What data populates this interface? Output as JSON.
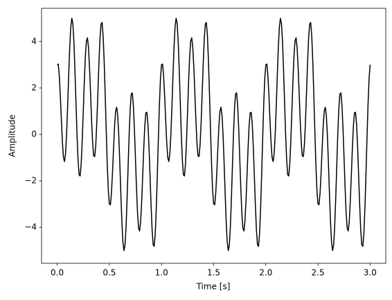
{
  "chart_data": {
    "type": "line",
    "xlabel": "Time [s]",
    "ylabel": "Amplitude",
    "color": "#000000",
    "x": [
      0,
      0.01,
      0.02,
      0.03,
      0.04,
      0.05,
      0.06,
      0.07,
      0.08,
      0.09,
      0.1,
      0.11,
      0.12,
      0.13,
      0.14,
      0.15,
      0.16,
      0.17,
      0.18,
      0.19,
      0.2,
      0.21,
      0.22,
      0.23,
      0.24,
      0.25,
      0.26,
      0.27,
      0.28,
      0.29,
      0.3,
      0.31,
      0.32,
      0.33,
      0.34,
      0.35,
      0.36,
      0.37,
      0.38,
      0.39,
      0.4,
      0.41,
      0.42,
      0.43,
      0.44,
      0.45,
      0.46,
      0.47,
      0.48,
      0.49,
      0.5,
      0.51,
      0.52,
      0.53,
      0.54,
      0.55,
      0.56,
      0.57,
      0.58,
      0.59,
      0.6,
      0.61,
      0.62,
      0.63,
      0.64,
      0.65,
      0.66,
      0.67,
      0.68,
      0.69,
      0.7,
      0.71,
      0.72,
      0.73,
      0.74,
      0.75,
      0.76,
      0.77,
      0.78,
      0.79,
      0.8,
      0.81,
      0.82,
      0.83,
      0.84,
      0.85,
      0.86,
      0.87,
      0.88,
      0.89,
      0.9,
      0.91,
      0.92,
      0.93,
      0.94,
      0.95,
      0.96,
      0.97,
      0.98,
      0.99,
      1,
      1.01,
      1.02,
      1.03,
      1.04,
      1.05,
      1.06,
      1.07,
      1.08,
      1.09,
      1.1,
      1.11,
      1.12,
      1.13,
      1.14,
      1.15,
      1.16,
      1.17,
      1.18,
      1.19,
      1.2,
      1.21,
      1.22,
      1.23,
      1.24,
      1.25,
      1.26,
      1.27,
      1.28,
      1.29,
      1.3,
      1.31,
      1.32,
      1.33,
      1.34,
      1.35,
      1.36,
      1.37,
      1.38,
      1.39,
      1.4,
      1.41,
      1.42,
      1.43,
      1.44,
      1.45,
      1.46,
      1.47,
      1.48,
      1.49,
      1.5,
      1.51,
      1.52,
      1.53,
      1.54,
      1.55,
      1.56,
      1.57,
      1.58,
      1.59,
      1.6,
      1.61,
      1.62,
      1.63,
      1.64,
      1.65,
      1.66,
      1.67,
      1.68,
      1.69,
      1.7,
      1.71,
      1.72,
      1.73,
      1.74,
      1.75,
      1.76,
      1.77,
      1.78,
      1.79,
      1.8,
      1.81,
      1.82,
      1.83,
      1.84,
      1.85,
      1.86,
      1.87,
      1.88,
      1.89,
      1.9,
      1.91,
      1.92,
      1.93,
      1.94,
      1.95,
      1.96,
      1.97,
      1.98,
      1.99,
      2,
      2.01,
      2.02,
      2.03,
      2.04,
      2.05,
      2.06,
      2.07,
      2.08,
      2.09,
      2.1,
      2.11,
      2.12,
      2.13,
      2.14,
      2.15,
      2.16,
      2.17,
      2.18,
      2.19,
      2.2,
      2.21,
      2.22,
      2.23,
      2.24,
      2.25,
      2.26,
      2.27,
      2.28,
      2.29,
      2.3,
      2.31,
      2.32,
      2.33,
      2.34,
      2.35,
      2.36,
      2.37,
      2.38,
      2.39,
      2.4,
      2.41,
      2.42,
      2.43,
      2.44,
      2.45,
      2.46,
      2.47,
      2.48,
      2.49,
      2.5,
      2.51,
      2.52,
      2.53,
      2.54,
      2.55,
      2.56,
      2.57,
      2.58,
      2.59,
      2.6,
      2.61,
      2.62,
      2.63,
      2.64,
      2.65,
      2.66,
      2.67,
      2.68,
      2.69,
      2.7,
      2.71,
      2.72,
      2.73,
      2.74,
      2.75,
      2.76,
      2.77,
      2.78,
      2.79,
      2.8,
      2.81,
      2.82,
      2.83,
      2.84,
      2.85,
      2.86,
      2.87,
      2.88,
      2.89,
      2.9,
      2.91,
      2.92,
      2.93,
      2.94,
      2.95,
      2.96,
      2.97,
      2.98,
      2.99,
      3
    ],
    "values": [
      3,
      3.03,
      2.53,
      1.66,
      0.62,
      -0.34,
      -0.99,
      -1.17,
      -0.83,
      0.01,
      1.2,
      2.53,
      3.75,
      4.63,
      5,
      4.78,
      4,
      2.79,
      1.37,
      -0.02,
      -1.11,
      -1.74,
      -1.79,
      -1.26,
      -0.26,
      1,
      2.29,
      3.37,
      4.03,
      4.16,
      3.74,
      2.87,
      1.75,
      0.58,
      -0.38,
      -0.93,
      -0.95,
      -0.44,
      0.53,
      1.78,
      3.05,
      4.12,
      4.75,
      4.82,
      4.27,
      3.19,
      1.74,
      0.17,
      -1.29,
      -2.4,
      -3,
      -3.03,
      -2.53,
      -1.66,
      -0.62,
      0.34,
      0.99,
      1.17,
      0.83,
      -0.01,
      -1.2,
      -2.53,
      -3.75,
      -4.63,
      -5,
      -4.78,
      -4,
      -2.79,
      -1.37,
      0.02,
      1.11,
      1.74,
      1.79,
      1.26,
      0.26,
      -1,
      -2.29,
      -3.37,
      -4.03,
      -4.16,
      -3.74,
      -2.87,
      -1.75,
      -0.58,
      0.38,
      0.93,
      0.95,
      0.44,
      -0.53,
      -1.78,
      -3.05,
      -4.12,
      -4.75,
      -4.82,
      -4.27,
      -3.19,
      -1.74,
      -0.17,
      1.29,
      2.4,
      3,
      3.03,
      2.53,
      1.66,
      0.62,
      -0.34,
      -0.99,
      -1.17,
      -0.83,
      0.01,
      1.2,
      2.53,
      3.75,
      4.63,
      5,
      4.78,
      4,
      2.79,
      1.37,
      -0.02,
      -1.11,
      -1.74,
      -1.79,
      -1.26,
      -0.26,
      1,
      2.29,
      3.37,
      4.03,
      4.16,
      3.74,
      2.87,
      1.75,
      0.58,
      -0.38,
      -0.93,
      -0.95,
      -0.44,
      0.53,
      1.78,
      3.05,
      4.12,
      4.75,
      4.82,
      4.27,
      3.19,
      1.74,
      0.17,
      -1.29,
      -2.4,
      -3,
      -3.03,
      -2.53,
      -1.66,
      -0.62,
      0.34,
      0.99,
      1.17,
      0.83,
      -0.01,
      -1.2,
      -2.53,
      -3.75,
      -4.63,
      -5,
      -4.78,
      -4,
      -2.79,
      -1.37,
      0.02,
      1.11,
      1.74,
      1.79,
      1.26,
      0.26,
      -1,
      -2.29,
      -3.37,
      -4.03,
      -4.16,
      -3.74,
      -2.87,
      -1.75,
      -0.58,
      0.38,
      0.93,
      0.95,
      0.44,
      -0.53,
      -1.78,
      -3.05,
      -4.12,
      -4.75,
      -4.82,
      -4.27,
      -3.19,
      -1.74,
      -0.17,
      1.29,
      2.4,
      3,
      3.03,
      2.53,
      1.66,
      0.62,
      -0.34,
      -0.99,
      -1.17,
      -0.83,
      0.01,
      1.2,
      2.53,
      3.75,
      4.63,
      5,
      4.78,
      4,
      2.79,
      1.37,
      -0.02,
      -1.11,
      -1.74,
      -1.79,
      -1.26,
      -0.26,
      1,
      2.29,
      3.37,
      4.03,
      4.16,
      3.74,
      2.87,
      1.75,
      0.58,
      -0.38,
      -0.93,
      -0.95,
      -0.44,
      0.53,
      1.78,
      3.05,
      4.12,
      4.75,
      4.82,
      4.27,
      3.19,
      1.74,
      0.17,
      -1.29,
      -2.4,
      -3,
      -3.03,
      -2.53,
      -1.66,
      -0.62,
      0.34,
      0.99,
      1.17,
      0.83,
      -0.01,
      -1.2,
      -2.53,
      -3.75,
      -4.63,
      -5,
      -4.78,
      -4,
      -2.79,
      -1.37,
      0.02,
      1.11,
      1.74,
      1.79,
      1.26,
      0.26,
      -1,
      -2.29,
      -3.37,
      -4.03,
      -4.16,
      -3.74,
      -2.87,
      -1.75,
      -0.58,
      0.38,
      0.93,
      0.95,
      0.44,
      -0.53,
      -1.78,
      -3.05,
      -4.12,
      -4.75,
      -4.82,
      -4.27,
      -3.19,
      -1.74,
      -0.17,
      1.29,
      2.4,
      3
    ],
    "xlim": [
      -0.15,
      3.15
    ],
    "ylim": [
      -5.55,
      5.43
    ],
    "xticks": [
      {
        "value": 0,
        "label": "0.0"
      },
      {
        "value": 0.5,
        "label": "0.5"
      },
      {
        "value": 1,
        "label": "1.0"
      },
      {
        "value": 1.5,
        "label": "1.5"
      },
      {
        "value": 2,
        "label": "2.0"
      },
      {
        "value": 2.5,
        "label": "2.5"
      },
      {
        "value": 3,
        "label": "3.0"
      }
    ],
    "yticks": [
      {
        "value": -4,
        "label": "−4"
      },
      {
        "value": -2,
        "label": "−2"
      },
      0,
      2,
      4
    ],
    "grid": false
  }
}
